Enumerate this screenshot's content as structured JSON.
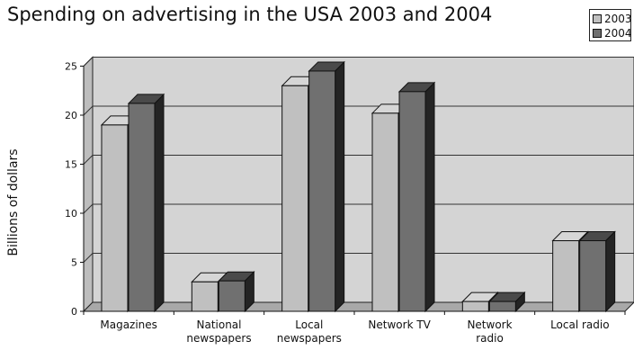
{
  "chart_data": {
    "type": "bar",
    "title": "Spending on advertising in the USA 2003 and 2004",
    "ylabel": "Billions of dollars",
    "xlabel": "",
    "ylim": [
      0,
      25
    ],
    "yticks": [
      0,
      5,
      10,
      15,
      20,
      25
    ],
    "grid": true,
    "legend_position": "top-right",
    "categories": [
      [
        "Magazines"
      ],
      [
        "National",
        "newspapers"
      ],
      [
        "Local",
        "newspapers"
      ],
      [
        "Network TV"
      ],
      [
        "Network",
        "radio"
      ],
      [
        "Local radio"
      ]
    ],
    "series": [
      {
        "name": "2003",
        "color": "#c0c0c0",
        "side_color": "#8a8a8a",
        "top_color": "#d6d6d6",
        "values": [
          19,
          3,
          23,
          20.2,
          1,
          7.2
        ]
      },
      {
        "name": "2004",
        "color": "#707070",
        "side_color": "#242424",
        "top_color": "#4a4a4a",
        "values": [
          21.2,
          3.1,
          24.5,
          22.4,
          1,
          7.2
        ]
      }
    ],
    "wall_color": "#d4d4d4",
    "floor_color": "#a8a8a8"
  }
}
